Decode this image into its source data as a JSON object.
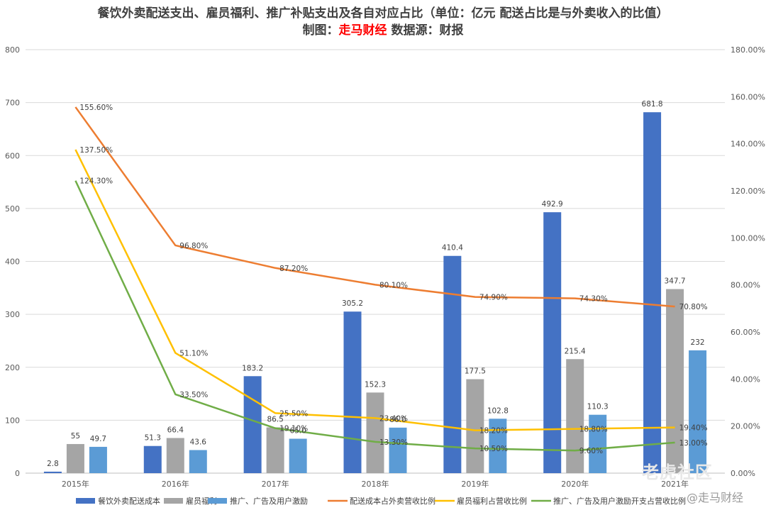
{
  "title": {
    "line1": "餐饮外卖配送支出、雇员福利、推广补贴支出及各自对应占比（单位：亿元 配送占比是与外卖收入的比值）",
    "line2_prefix": "制图：",
    "line2_author": "走马财经",
    "line2_suffix": " 数据源：财报"
  },
  "watermarks": {
    "community": "老虎社区",
    "brand": "@走马财经"
  },
  "colors": {
    "delivery_cost": "#4472c4",
    "employee_benefit": "#a5a5a5",
    "promotion": "#5b9bd5",
    "delivery_ratio": "#ed7d31",
    "employee_ratio": "#ffc000",
    "promotion_ratio": "#70ad47",
    "grid": "#d9d9d9"
  },
  "chart_data": {
    "type": "bar",
    "categories": [
      "2015年",
      "2016年",
      "2017年",
      "2018年",
      "2019年",
      "2020年",
      "2021年"
    ],
    "series": [
      {
        "name": "餐饮外卖配送成本",
        "kind": "bar",
        "axis": "left",
        "values": [
          2.8,
          51.3,
          183.2,
          305.2,
          410.4,
          492.9,
          681.8
        ],
        "labels": [
          "2.8",
          "51.3",
          "183.2",
          "305.2",
          "410.4",
          "492.9",
          "681.8"
        ]
      },
      {
        "name": "雇员福利",
        "kind": "bar",
        "axis": "left",
        "values": [
          55,
          66.4,
          86.5,
          152.3,
          177.5,
          215.4,
          347.7
        ],
        "labels": [
          "55",
          "66.4",
          "86.5",
          "152.3",
          "177.5",
          "215.4",
          "347.7"
        ]
      },
      {
        "name": "推广、广告及用户激励",
        "kind": "bar",
        "axis": "left",
        "values": [
          49.7,
          43.6,
          65.0,
          86.0,
          102.8,
          110.3,
          232
        ],
        "labels": [
          "49.7",
          "43.6",
          "65.0",
          "86.0",
          "102.8",
          "110.3",
          "232"
        ]
      },
      {
        "name": "配送成本占外卖营收比例",
        "kind": "line",
        "axis": "right",
        "values": [
          155.6,
          96.8,
          87.2,
          80.1,
          74.9,
          74.3,
          70.8
        ],
        "labels": [
          "155.60%",
          "96.80%",
          "87.20%",
          "80.10%",
          "74.90%",
          "74.30%",
          "70.80%"
        ]
      },
      {
        "name": "雇员福利占营收比例",
        "kind": "line",
        "axis": "right",
        "values": [
          137.5,
          51.1,
          25.5,
          23.4,
          18.2,
          18.8,
          19.4
        ],
        "labels": [
          "137.50%",
          "51.10%",
          "25.50%",
          "23.40%",
          "18.20%",
          "18.80%",
          "19.40%"
        ]
      },
      {
        "name": "推广、广告及用户激励开支占营收比例",
        "kind": "line",
        "axis": "right",
        "values": [
          124.3,
          33.5,
          19.1,
          13.3,
          10.5,
          9.6,
          13.0
        ],
        "labels": [
          "124.30%",
          "33.50%",
          "19.10%",
          "13.30%",
          "10.50%",
          "9.60%",
          "13.00%"
        ]
      }
    ],
    "y_left": {
      "range": [
        0,
        800
      ],
      "ticks": [
        "0",
        "100",
        "200",
        "300",
        "400",
        "500",
        "600",
        "700",
        "800"
      ]
    },
    "y_right": {
      "range": [
        0,
        180
      ],
      "ticks": [
        "0.00%",
        "20.00%",
        "40.00%",
        "60.00%",
        "80.00%",
        "100.00%",
        "120.00%",
        "140.00%",
        "160.00%",
        "180.00%"
      ]
    },
    "grid": true,
    "legend": "bottom"
  }
}
